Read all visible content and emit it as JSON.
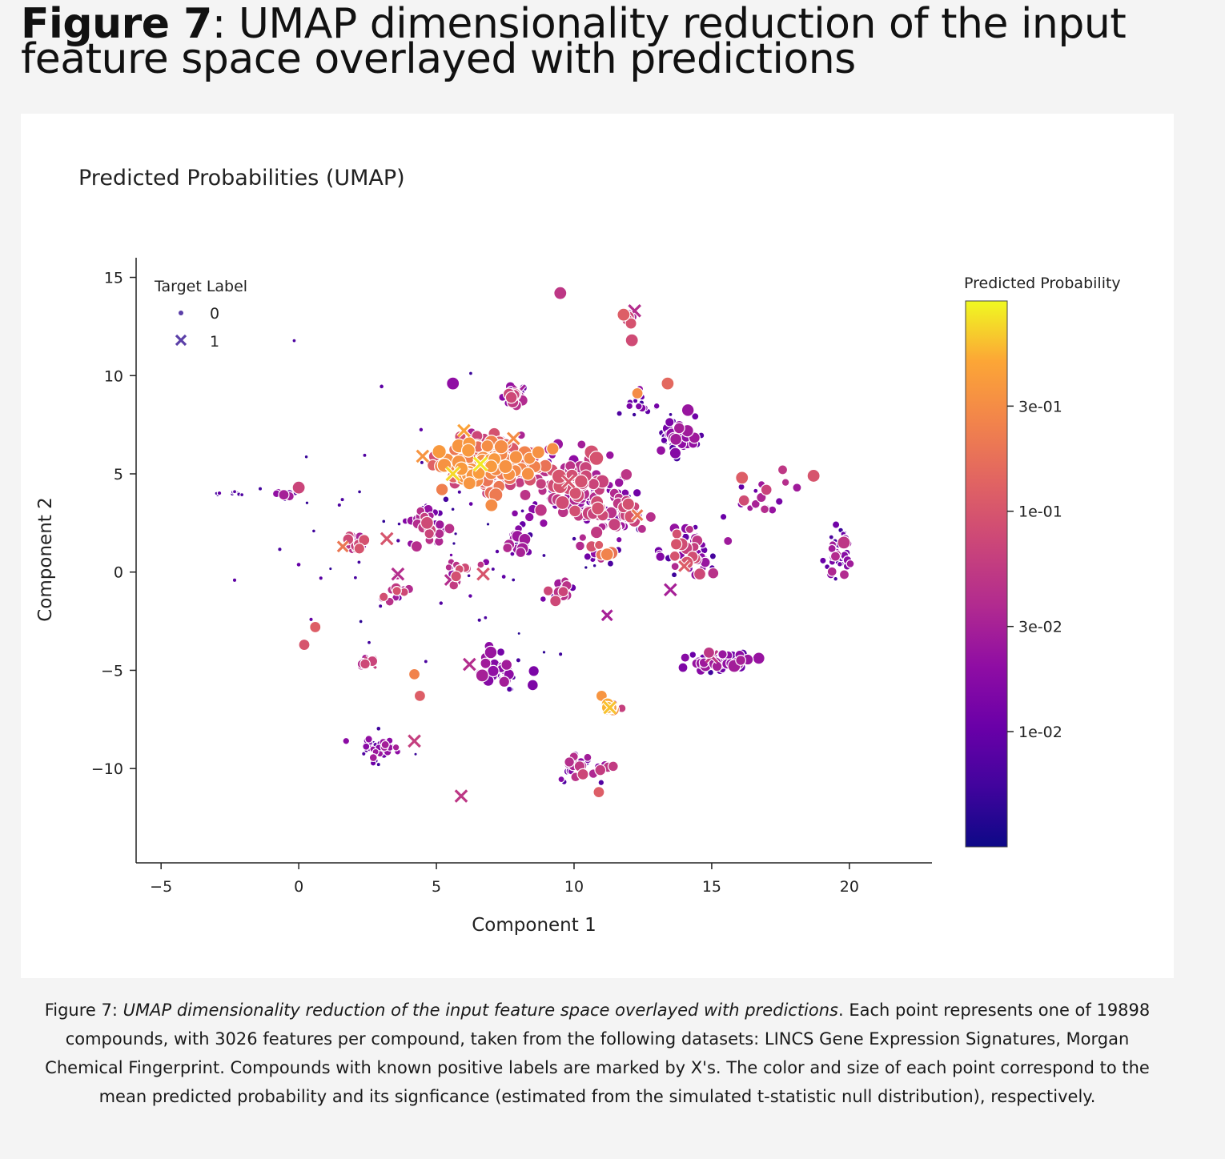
{
  "figure": {
    "label": "Figure 7",
    "title": ": UMAP dimensionality reduction of the input feature space overlayed with predictions"
  },
  "caption": {
    "label": "Figure 7",
    "sep": ": ",
    "title_italic": "UMAP dimensionality reduction of the input feature space overlayed with predictions",
    "body": ". Each point represents one of 19898 compounds, with 3026 features per compound, taken from the following datasets: LINCS Gene Expression Signatures, Morgan Chemical Fingerprint. Compounds with known positive labels are marked by X's. The color and size of each point correspond to the mean predicted probability and its signficance (estimated from the simulated t-statistic null distribution), respectively."
  },
  "chart_data": {
    "type": "scatter",
    "title": "Predicted Probabilities (UMAP)",
    "xlabel": "Component 1",
    "ylabel": "Component 2",
    "xlim": [
      -5.5,
      23
    ],
    "ylim": [
      -14.8,
      16
    ],
    "xticks": [
      -5,
      0,
      5,
      10,
      15,
      20
    ],
    "xtick_labels": [
      "−5",
      "0",
      "5",
      "10",
      "15",
      "20"
    ],
    "yticks": [
      15,
      10,
      5,
      0,
      -5,
      -10
    ],
    "ytick_labels": [
      "15",
      "10",
      "5",
      "0",
      "−5",
      "−10"
    ],
    "grid": false,
    "legend": {
      "title": "Target Label",
      "placement": "top-left",
      "entries": [
        {
          "label": "0",
          "marker": "circle"
        },
        {
          "label": "1",
          "marker": "x"
        }
      ]
    },
    "colorbar": {
      "title": "Predicted Probability",
      "scale": "log",
      "colormap": "plasma",
      "range": [
        0.003,
        0.9
      ],
      "ticks": [
        0.3,
        0.1,
        0.03,
        0.01
      ],
      "tick_labels": [
        "3e-01",
        "1e-01",
        "3e-02",
        "1e-02"
      ]
    },
    "clusters": [
      {
        "x": 6.8,
        "y": 5.5,
        "sx": 1.5,
        "sy": 1.1,
        "n": 230,
        "p": [
          0.03,
          0.4
        ],
        "s": [
          5,
          9
        ]
      },
      {
        "x": 9.8,
        "y": 4.5,
        "sx": 1.6,
        "sy": 1.6,
        "n": 110,
        "p": [
          0.01,
          0.1
        ],
        "s": [
          3,
          9
        ]
      },
      {
        "x": 7.8,
        "y": 9.0,
        "sx": 0.4,
        "sy": 0.6,
        "n": 20,
        "p": [
          0.01,
          0.08
        ],
        "s": [
          3,
          8
        ]
      },
      {
        "x": 11.5,
        "y": 3.0,
        "sx": 1.2,
        "sy": 1.2,
        "n": 60,
        "p": [
          0.005,
          0.1
        ],
        "s": [
          2,
          8
        ]
      },
      {
        "x": 14.3,
        "y": 1.0,
        "sx": 0.9,
        "sy": 1.0,
        "n": 55,
        "p": [
          0.005,
          0.1
        ],
        "s": [
          2,
          8
        ]
      },
      {
        "x": 13.8,
        "y": 6.8,
        "sx": 0.7,
        "sy": 0.9,
        "n": 40,
        "p": [
          0.005,
          0.03
        ],
        "s": [
          2,
          8
        ]
      },
      {
        "x": 15.3,
        "y": -4.6,
        "sx": 1.0,
        "sy": 0.4,
        "n": 60,
        "p": [
          0.005,
          0.03
        ],
        "s": [
          2,
          8
        ]
      },
      {
        "x": 7.3,
        "y": -5.0,
        "sx": 0.7,
        "sy": 0.8,
        "n": 45,
        "p": [
          0.005,
          0.03
        ],
        "s": [
          2,
          8
        ]
      },
      {
        "x": 3.0,
        "y": -9.0,
        "sx": 0.8,
        "sy": 0.6,
        "n": 45,
        "p": [
          0.005,
          0.03
        ],
        "s": [
          2,
          5
        ]
      },
      {
        "x": 19.6,
        "y": 1.0,
        "sx": 0.4,
        "sy": 1.2,
        "n": 45,
        "p": [
          0.005,
          0.04
        ],
        "s": [
          2,
          6
        ]
      },
      {
        "x": 10.3,
        "y": -10.0,
        "sx": 1.0,
        "sy": 0.6,
        "n": 30,
        "p": [
          0.005,
          0.08
        ],
        "s": [
          2,
          7
        ]
      },
      {
        "x": 4.7,
        "y": 2.4,
        "sx": 0.7,
        "sy": 0.9,
        "n": 40,
        "p": [
          0.005,
          0.1
        ],
        "s": [
          2,
          8
        ]
      },
      {
        "x": 8.0,
        "y": 1.5,
        "sx": 0.5,
        "sy": 0.6,
        "n": 25,
        "p": [
          0.005,
          0.05
        ],
        "s": [
          2,
          8
        ]
      },
      {
        "x": 2.2,
        "y": 1.4,
        "sx": 0.4,
        "sy": 0.4,
        "n": 20,
        "p": [
          0.005,
          0.1
        ],
        "s": [
          2,
          7
        ]
      },
      {
        "x": 12.0,
        "y": 13.0,
        "sx": 0.2,
        "sy": 0.5,
        "n": 10,
        "p": [
          0.01,
          0.1
        ],
        "s": [
          3,
          8
        ]
      },
      {
        "x": 11.3,
        "y": -6.8,
        "sx": 0.3,
        "sy": 0.2,
        "n": 14,
        "p": [
          0.02,
          0.6
        ],
        "s": [
          3,
          8
        ]
      },
      {
        "x": 9.5,
        "y": -1.0,
        "sx": 0.5,
        "sy": 0.5,
        "n": 15,
        "p": [
          0.01,
          0.1
        ],
        "s": [
          3,
          8
        ]
      },
      {
        "x": 3.5,
        "y": -1.0,
        "sx": 0.5,
        "sy": 0.6,
        "n": 15,
        "p": [
          0.01,
          0.1
        ],
        "s": [
          2,
          7
        ]
      },
      {
        "x": 2.4,
        "y": -4.6,
        "sx": 0.3,
        "sy": 0.2,
        "n": 10,
        "p": [
          0.02,
          0.08
        ],
        "s": [
          3,
          7
        ]
      },
      {
        "x": -2.5,
        "y": 4.0,
        "sx": 0.6,
        "sy": 0.1,
        "n": 10,
        "p": [
          0.005,
          0.01
        ],
        "s": [
          2,
          3
        ]
      },
      {
        "x": -0.5,
        "y": 3.9,
        "sx": 0.4,
        "sy": 0.3,
        "n": 10,
        "p": [
          0.005,
          0.04
        ],
        "s": [
          2,
          7
        ]
      },
      {
        "x": 12.4,
        "y": 8.5,
        "sx": 0.5,
        "sy": 0.6,
        "n": 15,
        "p": [
          0.005,
          0.02
        ],
        "s": [
          2,
          5
        ]
      },
      {
        "x": 16.5,
        "y": 4.0,
        "sx": 1.2,
        "sy": 1.3,
        "n": 18,
        "p": [
          0.005,
          0.1
        ],
        "s": [
          2,
          7
        ]
      },
      {
        "x": 6.0,
        "y": 0.0,
        "sx": 0.8,
        "sy": 0.8,
        "n": 15,
        "p": [
          0.01,
          0.1
        ],
        "s": [
          2,
          7
        ]
      },
      {
        "x": 11.0,
        "y": 1.0,
        "sx": 0.8,
        "sy": 0.7,
        "n": 20,
        "p": [
          0.005,
          0.2
        ],
        "s": [
          2,
          8
        ]
      },
      {
        "x": 5.0,
        "y": 1.0,
        "sx": 6.0,
        "sy": 6.0,
        "n": 60,
        "p": [
          0.004,
          0.01
        ],
        "s": [
          2,
          3
        ]
      }
    ],
    "highlights": [
      {
        "x": 9.5,
        "y": 14.2,
        "p": 0.05,
        "s": 8
      },
      {
        "x": 11.8,
        "y": 13.1,
        "p": 0.12,
        "s": 8
      },
      {
        "x": 12.2,
        "y": 13.3,
        "p": 0.04,
        "s": 8,
        "m": "x"
      },
      {
        "x": 12.1,
        "y": 11.8,
        "p": 0.08,
        "s": 8
      },
      {
        "x": 13.4,
        "y": 9.6,
        "p": 0.15,
        "s": 8
      },
      {
        "x": 12.3,
        "y": 9.1,
        "p": 0.3,
        "s": 7
      },
      {
        "x": 5.6,
        "y": 9.6,
        "p": 0.02,
        "s": 8
      },
      {
        "x": 18.7,
        "y": 4.9,
        "p": 0.1,
        "s": 8
      },
      {
        "x": 16.1,
        "y": 4.8,
        "p": 0.12,
        "s": 8
      },
      {
        "x": 0.0,
        "y": 4.3,
        "p": 0.07,
        "s": 8
      },
      {
        "x": 1.6,
        "y": 1.3,
        "p": 0.2,
        "s": 7,
        "m": "x"
      },
      {
        "x": 3.2,
        "y": 1.7,
        "p": 0.1,
        "s": 8,
        "m": "x"
      },
      {
        "x": 3.6,
        "y": -0.1,
        "p": 0.04,
        "s": 8,
        "m": "x"
      },
      {
        "x": 5.5,
        "y": -0.4,
        "p": 0.04,
        "s": 7,
        "m": "x"
      },
      {
        "x": 6.7,
        "y": -0.1,
        "p": 0.1,
        "s": 8,
        "m": "x"
      },
      {
        "x": 0.6,
        "y": -2.8,
        "p": 0.12,
        "s": 7
      },
      {
        "x": 0.2,
        "y": -3.7,
        "p": 0.1,
        "s": 7
      },
      {
        "x": 4.2,
        "y": -5.2,
        "p": 0.25,
        "s": 7
      },
      {
        "x": 4.4,
        "y": -6.3,
        "p": 0.12,
        "s": 7
      },
      {
        "x": 2.6,
        "y": -4.6,
        "p": 0.06,
        "s": 8,
        "m": "x"
      },
      {
        "x": 6.2,
        "y": -4.7,
        "p": 0.04,
        "s": 8,
        "m": "x"
      },
      {
        "x": 4.2,
        "y": -8.6,
        "p": 0.06,
        "s": 8,
        "m": "x"
      },
      {
        "x": 5.9,
        "y": -11.4,
        "p": 0.05,
        "s": 8,
        "m": "x"
      },
      {
        "x": 11.0,
        "y": -6.3,
        "p": 0.35,
        "s": 7
      },
      {
        "x": 11.3,
        "y": -6.9,
        "p": 0.6,
        "s": 8,
        "m": "x"
      },
      {
        "x": 10.9,
        "y": -11.2,
        "p": 0.12,
        "s": 7
      },
      {
        "x": 11.2,
        "y": -2.2,
        "p": 0.03,
        "s": 7,
        "m": "x"
      },
      {
        "x": 9.5,
        "y": -0.9,
        "p": 0.02,
        "s": 8,
        "m": "x"
      },
      {
        "x": 13.5,
        "y": -0.9,
        "p": 0.03,
        "s": 8,
        "m": "x"
      },
      {
        "x": 14.0,
        "y": 0.3,
        "p": 0.12,
        "s": 7,
        "m": "x"
      },
      {
        "x": 15.0,
        "y": -4.3,
        "p": 0.05,
        "s": 8,
        "m": "x"
      },
      {
        "x": 11.2,
        "y": 0.9,
        "p": 0.25,
        "s": 8
      },
      {
        "x": 12.3,
        "y": 2.9,
        "p": 0.2,
        "s": 7,
        "m": "x"
      },
      {
        "x": 9.8,
        "y": 4.6,
        "p": 0.1,
        "s": 8,
        "m": "x"
      },
      {
        "x": 7.0,
        "y": 3.4,
        "p": 0.3,
        "s": 8
      },
      {
        "x": 4.5,
        "y": 5.9,
        "p": 0.35,
        "s": 8,
        "m": "x"
      },
      {
        "x": 5.6,
        "y": 5.0,
        "p": 0.7,
        "s": 9,
        "m": "x"
      },
      {
        "x": 6.6,
        "y": 5.5,
        "p": 0.8,
        "s": 9,
        "m": "x"
      },
      {
        "x": 6.0,
        "y": 7.2,
        "p": 0.45,
        "s": 8,
        "m": "x"
      },
      {
        "x": 7.8,
        "y": 6.8,
        "p": 0.3,
        "s": 8,
        "m": "x"
      },
      {
        "x": 8.2,
        "y": 5.2,
        "p": 0.2,
        "s": 8,
        "m": "x"
      },
      {
        "x": 8.0,
        "y": 9.2,
        "p": 0.03,
        "s": 8,
        "m": "x"
      },
      {
        "x": 14.9,
        "y": -4.1,
        "p": 0.05,
        "s": 7
      },
      {
        "x": 19.8,
        "y": 1.5,
        "p": 0.05,
        "s": 8
      }
    ]
  }
}
